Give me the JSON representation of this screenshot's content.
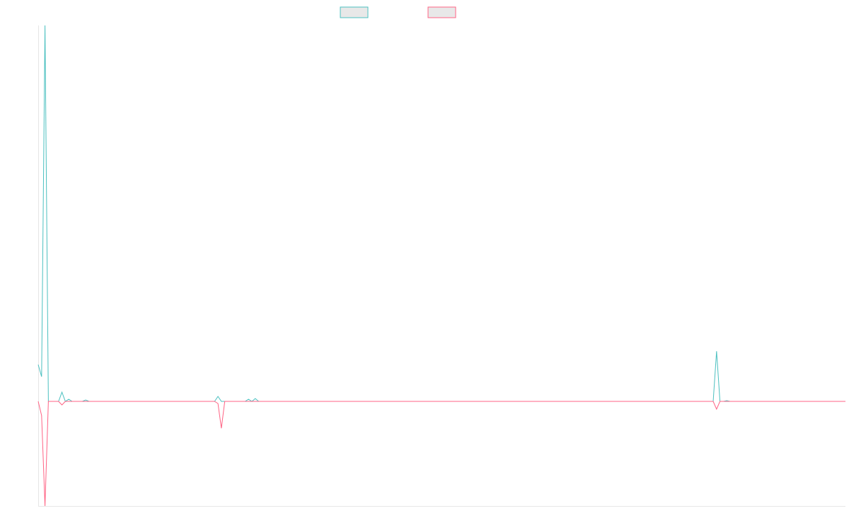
{
  "chart_data": {
    "type": "line",
    "legend_placement": "top-center",
    "grid": false,
    "title": "",
    "xlabel": "",
    "ylabel": "",
    "x": [
      0,
      1,
      2,
      3,
      4,
      5,
      6,
      7,
      8,
      9,
      10,
      11,
      12,
      13,
      14,
      15,
      16,
      17,
      18,
      19,
      20,
      21,
      22,
      23,
      24,
      25,
      26,
      27,
      28,
      29,
      30,
      31,
      32,
      33,
      34,
      35,
      36,
      37,
      38,
      39,
      40,
      41,
      42,
      43,
      44,
      45,
      46,
      47,
      48,
      49,
      50,
      51,
      52,
      53,
      54,
      55,
      56,
      57,
      58,
      59,
      60,
      61,
      62,
      63,
      64,
      65,
      66,
      67,
      68,
      69,
      70,
      71,
      72,
      73,
      74,
      75,
      76,
      77,
      78,
      79,
      80,
      81,
      82,
      83,
      84,
      85,
      86,
      87,
      88,
      89,
      90,
      91,
      92,
      93,
      94,
      95,
      96,
      97,
      98,
      99,
      100,
      101,
      102,
      103,
      104,
      105,
      106,
      107,
      108,
      109,
      110,
      111,
      112,
      113,
      114,
      115,
      116,
      117,
      118,
      119,
      120,
      121,
      122,
      123,
      124,
      125,
      126,
      127,
      128,
      129,
      130,
      131,
      132,
      133,
      134,
      135,
      136,
      137,
      138,
      139,
      140,
      141,
      142,
      143,
      144,
      145,
      146,
      147,
      148,
      149,
      150,
      151,
      152,
      153,
      154,
      155,
      156,
      157,
      158,
      159,
      160,
      161,
      162,
      163,
      164,
      165,
      166,
      167,
      168,
      169,
      170,
      171,
      172,
      173,
      174,
      175,
      176,
      177,
      178,
      179,
      180,
      181,
      182,
      183,
      184,
      185,
      186,
      187,
      188,
      189,
      190,
      191,
      192,
      193,
      194,
      195,
      196,
      197,
      198,
      199,
      200,
      201,
      202,
      203,
      204,
      205,
      206,
      207,
      208,
      209,
      210,
      211,
      212,
      213,
      214,
      215,
      216,
      217,
      218,
      219,
      220,
      221,
      222,
      223,
      224,
      225,
      226,
      227,
      228,
      229,
      230,
      231,
      232,
      233,
      234,
      235,
      236,
      237,
      238
    ],
    "ylim": [
      -148,
      532
    ],
    "series": [
      {
        "name": "",
        "color": "#4bc0c0",
        "values": [
          52,
          35,
          532,
          0,
          0,
          0,
          0,
          13,
          0,
          3,
          0,
          0,
          0,
          0,
          2,
          0,
          0,
          0,
          0,
          0,
          0,
          0,
          0,
          0,
          0,
          0,
          0,
          0,
          0,
          0,
          0,
          0,
          0,
          0,
          0,
          0,
          0,
          0,
          0,
          0,
          0,
          0,
          0,
          0,
          0,
          0,
          0,
          0,
          0,
          0,
          0,
          0,
          0,
          7,
          0,
          0,
          0,
          0,
          0,
          0,
          0,
          0,
          3,
          0,
          4,
          0,
          0,
          0,
          0,
          0,
          0,
          0,
          0,
          0,
          0,
          0,
          0,
          0,
          0,
          0,
          0,
          0,
          0,
          0,
          0,
          0,
          0,
          0,
          0,
          0,
          0,
          0,
          0,
          0,
          0,
          0,
          0,
          0,
          0,
          0,
          0,
          0,
          0,
          0,
          0,
          0,
          0,
          0,
          0,
          0,
          0,
          0,
          0,
          0,
          0,
          0,
          0,
          0,
          0,
          0,
          0,
          0,
          0,
          0,
          0,
          0,
          0,
          0,
          0,
          0,
          0,
          0,
          0,
          0,
          0,
          0,
          0,
          0,
          0,
          0,
          0,
          0,
          0,
          0,
          0,
          0,
          0,
          0,
          0,
          0,
          0,
          0,
          0,
          0,
          0,
          0,
          0,
          0,
          0,
          0,
          0,
          0,
          0,
          0,
          0,
          0,
          0,
          0,
          0,
          0,
          0,
          0,
          0,
          0,
          0,
          0,
          0,
          0,
          0,
          0,
          0,
          0,
          0,
          0,
          0,
          0,
          0,
          0,
          0,
          0,
          0,
          0,
          0,
          0,
          0,
          0,
          0,
          0,
          0,
          0,
          71,
          0,
          0,
          1,
          0,
          0,
          0,
          0,
          0,
          0,
          0,
          0,
          0,
          0,
          0,
          0,
          0,
          0,
          0,
          0,
          0,
          0,
          0,
          0,
          0,
          0,
          0,
          0,
          0,
          0,
          0,
          0,
          0,
          0,
          0,
          0,
          0,
          0,
          0
        ]
      },
      {
        "name": "",
        "color": "#ff6384",
        "values": [
          0,
          -20,
          -148,
          0,
          0,
          0,
          0,
          -5,
          0,
          0,
          0,
          0,
          0,
          0,
          0,
          0,
          0,
          0,
          0,
          0,
          0,
          0,
          0,
          0,
          0,
          0,
          0,
          0,
          0,
          0,
          0,
          0,
          0,
          0,
          0,
          0,
          0,
          0,
          0,
          0,
          0,
          0,
          0,
          0,
          0,
          0,
          0,
          0,
          0,
          0,
          0,
          0,
          0,
          -3,
          -38,
          0,
          0,
          0,
          0,
          0,
          0,
          0,
          0,
          0,
          0,
          0,
          0,
          0,
          0,
          0,
          0,
          0,
          0,
          0,
          0,
          0,
          0,
          0,
          0,
          0,
          0,
          0,
          0,
          0,
          0,
          0,
          0,
          0,
          0,
          0,
          0,
          0,
          0,
          0,
          0,
          0,
          0,
          0,
          0,
          0,
          0,
          0,
          0,
          0,
          0,
          0,
          0,
          0,
          0,
          0,
          0,
          0,
          0,
          0,
          0,
          0,
          0,
          0,
          0,
          0,
          0,
          0,
          0,
          0,
          0,
          0,
          0,
          0,
          0,
          0,
          0,
          0,
          0,
          0,
          0,
          0,
          0,
          0,
          0,
          0,
          0,
          0,
          0,
          0,
          0,
          0,
          0,
          0,
          0,
          0,
          0,
          0,
          0,
          0,
          0,
          0,
          0,
          0,
          0,
          0,
          0,
          0,
          0,
          0,
          0,
          0,
          0,
          0,
          0,
          0,
          0,
          0,
          0,
          0,
          0,
          0,
          0,
          0,
          0,
          0,
          0,
          0,
          0,
          0,
          0,
          0,
          0,
          0,
          0,
          0,
          0,
          0,
          0,
          0,
          0,
          0,
          0,
          0,
          0,
          0,
          -11,
          0,
          0,
          0,
          0,
          0,
          0,
          0,
          0,
          0,
          0,
          0,
          0,
          0,
          0,
          0,
          0,
          0,
          0,
          0,
          0,
          0,
          0,
          0,
          0,
          0,
          0,
          0,
          0,
          0,
          0,
          0,
          0,
          0,
          0,
          0,
          0,
          0,
          0
        ]
      }
    ]
  }
}
